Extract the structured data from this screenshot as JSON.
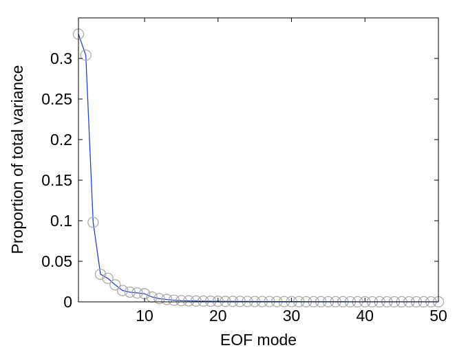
{
  "chart_data": {
    "type": "line",
    "title": "",
    "xlabel": "EOF mode",
    "ylabel": "Proportion of total variance",
    "xlim": [
      1,
      50
    ],
    "ylim": [
      0,
      0.35
    ],
    "xticks": [
      10,
      20,
      30,
      40,
      50
    ],
    "yticks": [
      0,
      0.05,
      0.1,
      0.15,
      0.2,
      0.25,
      0.3
    ],
    "xtick_labels": [
      "10",
      "20",
      "30",
      "40",
      "50"
    ],
    "ytick_labels": [
      "0",
      "0.05",
      "0.1",
      "0.15",
      "0.2",
      "0.25",
      "0.3"
    ],
    "grid": false,
    "legend": "none",
    "line_color": "#1f3fdc",
    "marker_color": "#aaaaaa",
    "marker": "open-circle",
    "series": [
      {
        "x": [
          1,
          2,
          3,
          4,
          5,
          6,
          7,
          8,
          9,
          10,
          11,
          12,
          13,
          14,
          15,
          16,
          17,
          18,
          19,
          20,
          21,
          22,
          23,
          24,
          25,
          26,
          27,
          28,
          29,
          30,
          31,
          32,
          33,
          34,
          35,
          36,
          37,
          38,
          39,
          40,
          41,
          42,
          43,
          44,
          45,
          46,
          47,
          48,
          49,
          50
        ],
        "values": [
          0.33,
          0.304,
          0.098,
          0.034,
          0.029,
          0.021,
          0.014,
          0.012,
          0.011,
          0.01,
          0.006,
          0.004,
          0.003,
          0.002,
          0.0015,
          0.0012,
          0.001,
          0.0009,
          0.0008,
          0.0007,
          0.0006,
          0.0006,
          0.0005,
          0.0005,
          0.0004,
          0.0004,
          0.0004,
          0.0003,
          0.0003,
          0.0003,
          0.0003,
          0.0002,
          0.0002,
          0.0002,
          0.0002,
          0.0002,
          0.0002,
          0.0001,
          0.0001,
          0.0001,
          0.0001,
          0.0001,
          0.0001,
          0.0001,
          0.0001,
          0.0001,
          0.0001,
          0.0001,
          0.0001,
          0.0001
        ]
      }
    ]
  }
}
